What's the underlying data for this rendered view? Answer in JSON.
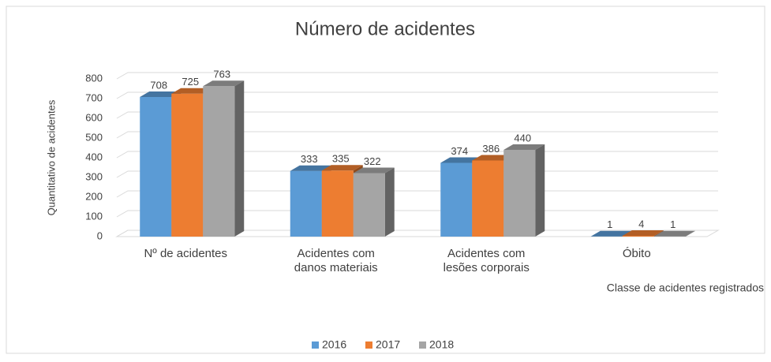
{
  "chart_data": {
    "type": "bar3d",
    "title": "Número de acidentes",
    "y_label": "Quantitativo de acidentes",
    "x_label": "Classe de acidentes registrados",
    "categories": [
      [
        "Nº de acidentes"
      ],
      [
        "Acidentes com",
        "danos materiais"
      ],
      [
        "Acidentes com",
        "lesões corporais"
      ],
      [
        "Óbito"
      ]
    ],
    "series": [
      {
        "name": "2016",
        "color": "#5b9bd5",
        "values": [
          708,
          333,
          374,
          1
        ]
      },
      {
        "name": "2017",
        "color": "#ed7d31",
        "values": [
          725,
          335,
          386,
          4
        ]
      },
      {
        "name": "2018",
        "color": "#a5a5a5",
        "values": [
          763,
          322,
          440,
          1
        ]
      }
    ],
    "ylim": [
      0,
      800
    ],
    "yticks": [
      0,
      100,
      200,
      300,
      400,
      500,
      600,
      700,
      800
    ],
    "grid": true,
    "legend": "bottom"
  }
}
